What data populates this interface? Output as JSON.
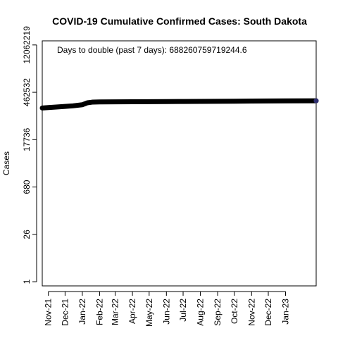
{
  "chart_data": {
    "type": "line",
    "title": "COVID-19 Cumulative Confirmed Cases: South Dakota",
    "annotation": "Days to double (past 7 days): 688260759719244.6",
    "xlabel": "",
    "ylabel": "Cases",
    "y_scale": "log",
    "ylim": [
      0.75,
      16000000
    ],
    "y_ticks": [
      1,
      26,
      680,
      17736,
      462532,
      12062219
    ],
    "xlim": [
      "2021-10-21",
      "2023-02-25"
    ],
    "x_ticks": [
      {
        "date": "2021-11-01",
        "label": "Nov-21"
      },
      {
        "date": "2021-12-01",
        "label": "Dec-21"
      },
      {
        "date": "2022-01-01",
        "label": "Jan-22"
      },
      {
        "date": "2022-02-01",
        "label": "Feb-22"
      },
      {
        "date": "2022-03-01",
        "label": "Mar-22"
      },
      {
        "date": "2022-04-01",
        "label": "Apr-22"
      },
      {
        "date": "2022-05-01",
        "label": "May-22"
      },
      {
        "date": "2022-06-01",
        "label": "Jun-22"
      },
      {
        "date": "2022-07-01",
        "label": "Jul-22"
      },
      {
        "date": "2022-08-01",
        "label": "Aug-22"
      },
      {
        "date": "2022-09-01",
        "label": "Sep-22"
      },
      {
        "date": "2022-10-01",
        "label": "Oct-22"
      },
      {
        "date": "2022-11-01",
        "label": "Nov-22"
      },
      {
        "date": "2022-12-01",
        "label": "Dec-22"
      },
      {
        "date": "2023-01-01",
        "label": "Jan-23"
      }
    ],
    "series": [
      {
        "color": "#000000",
        "x": [
          "2021-10-21",
          "2021-11-01",
          "2021-11-15",
          "2021-12-01",
          "2021-12-15",
          "2022-01-01",
          "2022-01-10",
          "2022-01-20",
          "2022-02-01",
          "2022-03-01",
          "2022-04-01",
          "2022-05-01",
          "2022-06-01",
          "2022-07-01",
          "2022-08-01",
          "2022-09-01",
          "2022-10-01",
          "2022-11-01",
          "2022-12-01",
          "2023-01-01",
          "2023-02-25"
        ],
        "y": [
          157000,
          162000,
          168000,
          175000,
          182000,
          196000,
          224000,
          236000,
          239000,
          240000,
          241000,
          242000,
          243500,
          245500,
          247500,
          249000,
          250500,
          252500,
          254500,
          256000,
          258000
        ]
      }
    ]
  },
  "colors": {
    "line": "#000000",
    "end_point": "#2d2d6e",
    "axis": "#000000",
    "background": "#ffffff"
  }
}
